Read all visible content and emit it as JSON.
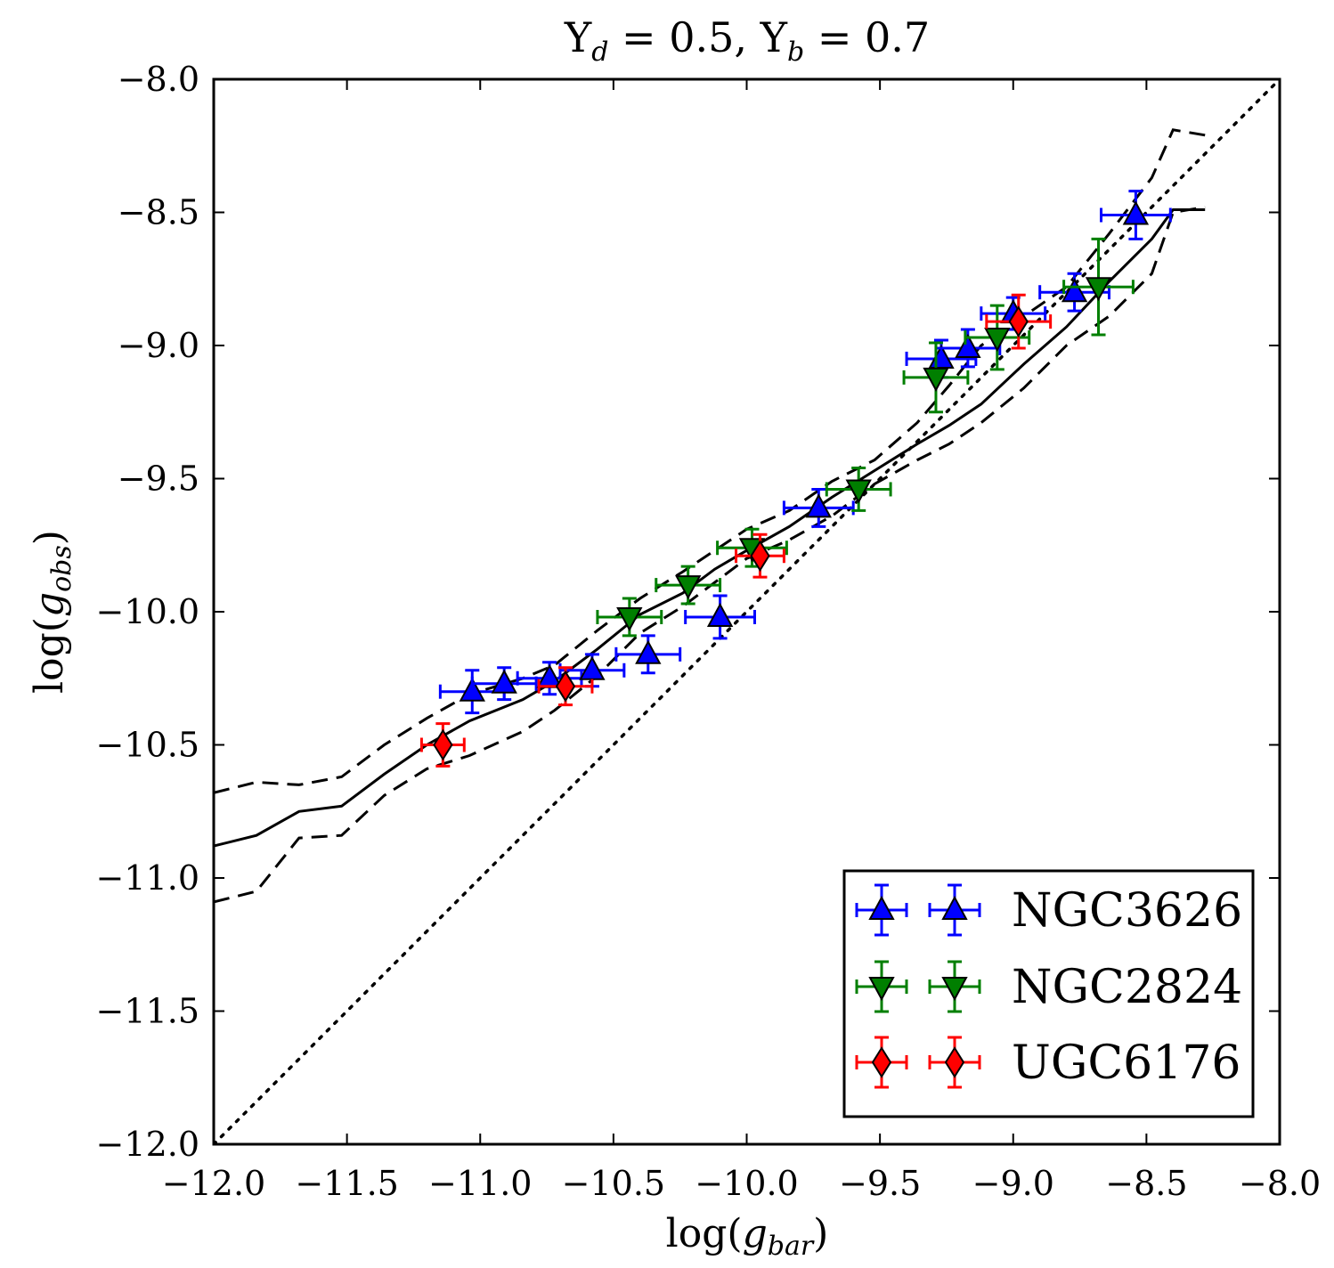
{
  "chart_data": {
    "type": "scatter",
    "title": {
      "upsilon_symbol": "Υ",
      "disk_subscript": "d",
      "disk_value": " = 0.5, ",
      "bulge_subscript": "b",
      "bulge_value": " = 0.7"
    },
    "xlabel": {
      "prefix": "log(",
      "symbol": "g",
      "subscript": "bar",
      "suffix": ")"
    },
    "ylabel": {
      "prefix": "log(",
      "symbol": "g",
      "subscript": "obs",
      "suffix": ")"
    },
    "xlim": [
      -12.0,
      -8.0
    ],
    "ylim": [
      -12.0,
      -8.0
    ],
    "x_ticks": [
      {
        "value": -12.0,
        "label": "−12.0"
      },
      {
        "value": -11.5,
        "label": "−11.5"
      },
      {
        "value": -11.0,
        "label": "−11.0"
      },
      {
        "value": -10.5,
        "label": "−10.5"
      },
      {
        "value": -10.0,
        "label": "−10.0"
      },
      {
        "value": -9.5,
        "label": "−9.5"
      },
      {
        "value": -9.0,
        "label": "−9.0"
      },
      {
        "value": -8.5,
        "label": "−8.5"
      },
      {
        "value": -8.0,
        "label": "−8.0"
      }
    ],
    "y_ticks": [
      {
        "value": -12.0,
        "label": "−12.0"
      },
      {
        "value": -11.5,
        "label": "−11.5"
      },
      {
        "value": -11.0,
        "label": "−11.0"
      },
      {
        "value": -10.5,
        "label": "−10.5"
      },
      {
        "value": -10.0,
        "label": "−10.0"
      },
      {
        "value": -9.5,
        "label": "−9.5"
      },
      {
        "value": -9.0,
        "label": "−9.0"
      },
      {
        "value": -8.5,
        "label": "−8.5"
      },
      {
        "value": -8.0,
        "label": "−8.0"
      }
    ],
    "grid": false,
    "legend_position": "lower-right",
    "lines": [
      {
        "style": "solid",
        "color": "#000000",
        "x": [
          -12.0,
          -11.84,
          -11.68,
          -11.52,
          -11.36,
          -11.2,
          -11.04,
          -10.84,
          -10.72,
          -10.56,
          -10.4,
          -10.24,
          -10.12,
          -10.0,
          -9.84,
          -9.68,
          -9.52,
          -9.36,
          -9.24,
          -9.12,
          -8.96,
          -8.8,
          -8.64,
          -8.48,
          -8.4,
          -8.28
        ],
        "y": [
          -10.88,
          -10.84,
          -10.75,
          -10.73,
          -10.61,
          -10.5,
          -10.41,
          -10.33,
          -10.26,
          -10.14,
          -10.01,
          -9.93,
          -9.84,
          -9.77,
          -9.68,
          -9.57,
          -9.47,
          -9.37,
          -9.3,
          -9.22,
          -9.07,
          -8.93,
          -8.76,
          -8.6,
          -8.49,
          -8.49
        ]
      },
      {
        "style": "dashed",
        "color": "#000000",
        "x": [
          -12.0,
          -11.84,
          -11.68,
          -11.52,
          -11.36,
          -11.2,
          -11.04,
          -10.84,
          -10.72,
          -10.56,
          -10.4,
          -10.24,
          -10.12,
          -10.0,
          -9.84,
          -9.68,
          -9.52,
          -9.36,
          -9.24,
          -9.12,
          -8.96,
          -8.8,
          -8.64,
          -8.48,
          -8.4,
          -8.28
        ],
        "y": [
          -10.68,
          -10.64,
          -10.65,
          -10.62,
          -10.5,
          -10.4,
          -10.31,
          -10.25,
          -10.2,
          -10.07,
          -9.95,
          -9.85,
          -9.77,
          -9.69,
          -9.62,
          -9.51,
          -9.43,
          -9.29,
          -9.15,
          -9.0,
          -8.89,
          -8.78,
          -8.58,
          -8.37,
          -8.19,
          -8.21
        ]
      },
      {
        "style": "dashed",
        "color": "#000000",
        "x": [
          -12.0,
          -11.84,
          -11.68,
          -11.52,
          -11.36,
          -11.2,
          -11.04,
          -10.84,
          -10.72,
          -10.56,
          -10.4,
          -10.24,
          -10.12,
          -10.0,
          -9.84,
          -9.68,
          -9.52,
          -9.36,
          -9.24,
          -9.12,
          -8.96,
          -8.8,
          -8.64,
          -8.48,
          -8.4,
          -8.28
        ],
        "y": [
          -11.09,
          -11.05,
          -10.85,
          -10.84,
          -10.69,
          -10.59,
          -10.54,
          -10.45,
          -10.37,
          -10.24,
          -10.08,
          -9.98,
          -9.89,
          -9.8,
          -9.73,
          -9.64,
          -9.52,
          -9.43,
          -9.37,
          -9.29,
          -9.16,
          -9.0,
          -8.89,
          -8.73,
          -8.5,
          -8.48
        ]
      },
      {
        "style": "dotted",
        "color": "#000000",
        "x": [
          -12.0,
          -8.0
        ],
        "y": [
          -12.0,
          -8.0
        ]
      }
    ],
    "series": [
      {
        "name": "NGC3626",
        "color": "#0000ff",
        "marker": "triangle-up",
        "points": [
          {
            "x": -11.03,
            "y": -10.3,
            "xerr": 0.12,
            "yerr": 0.08
          },
          {
            "x": -10.91,
            "y": -10.27,
            "xerr": 0.12,
            "yerr": 0.06
          },
          {
            "x": -10.74,
            "y": -10.25,
            "xerr": 0.12,
            "yerr": 0.06
          },
          {
            "x": -10.58,
            "y": -10.22,
            "xerr": 0.12,
            "yerr": 0.06
          },
          {
            "x": -10.37,
            "y": -10.16,
            "xerr": 0.12,
            "yerr": 0.07
          },
          {
            "x": -10.1,
            "y": -10.02,
            "xerr": 0.13,
            "yerr": 0.08
          },
          {
            "x": -9.73,
            "y": -9.61,
            "xerr": 0.13,
            "yerr": 0.07
          },
          {
            "x": -9.27,
            "y": -9.05,
            "xerr": 0.13,
            "yerr": 0.07
          },
          {
            "x": -9.17,
            "y": -9.01,
            "xerr": 0.12,
            "yerr": 0.07
          },
          {
            "x": -9.0,
            "y": -8.88,
            "xerr": 0.12,
            "yerr": 0.06
          },
          {
            "x": -8.77,
            "y": -8.8,
            "xerr": 0.13,
            "yerr": 0.07
          },
          {
            "x": -8.54,
            "y": -8.51,
            "xerr": 0.13,
            "yerr": 0.09
          }
        ]
      },
      {
        "name": "NGC2824",
        "color": "#007f00",
        "marker": "triangle-down",
        "points": [
          {
            "x": -10.44,
            "y": -10.02,
            "xerr": 0.12,
            "yerr": 0.07
          },
          {
            "x": -10.22,
            "y": -9.9,
            "xerr": 0.12,
            "yerr": 0.07
          },
          {
            "x": -9.98,
            "y": -9.76,
            "xerr": 0.13,
            "yerr": 0.07
          },
          {
            "x": -9.58,
            "y": -9.54,
            "xerr": 0.12,
            "yerr": 0.08
          },
          {
            "x": -9.29,
            "y": -9.12,
            "xerr": 0.12,
            "yerr": 0.13
          },
          {
            "x": -9.06,
            "y": -8.97,
            "xerr": 0.12,
            "yerr": 0.12
          },
          {
            "x": -8.68,
            "y": -8.78,
            "xerr": 0.13,
            "yerr": 0.18
          }
        ]
      },
      {
        "name": "UGC6176",
        "color": "#ff0000",
        "marker": "diamond",
        "points": [
          {
            "x": -11.14,
            "y": -10.5,
            "xerr": 0.08,
            "yerr": 0.08
          },
          {
            "x": -10.68,
            "y": -10.28,
            "xerr": 0.1,
            "yerr": 0.07
          },
          {
            "x": -9.95,
            "y": -9.79,
            "xerr": 0.09,
            "yerr": 0.08
          },
          {
            "x": -8.98,
            "y": -8.91,
            "xerr": 0.12,
            "yerr": 0.1
          }
        ]
      }
    ]
  }
}
